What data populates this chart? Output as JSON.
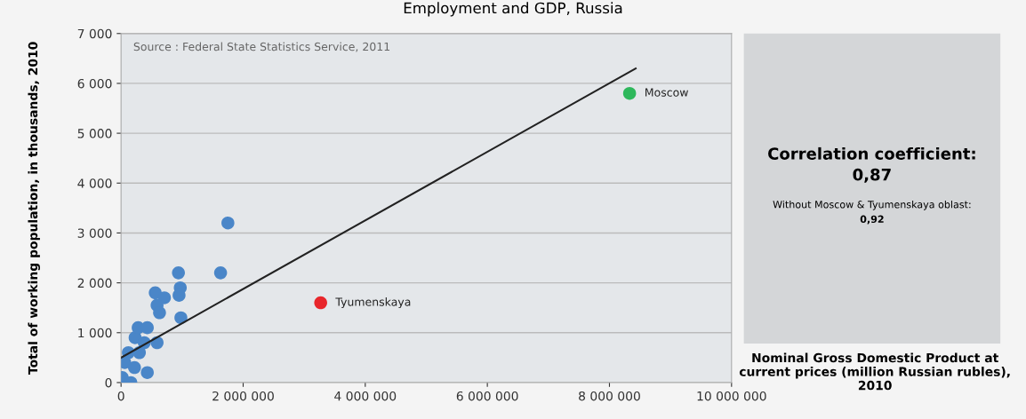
{
  "chart_data": {
    "type": "scatter",
    "title": "Employment and GDP, Russia",
    "xlabel": "Nominal Gross Domestic Product at current prices (million Russian rubles), 2010",
    "ylabel": "Total of working population, in thousands, 2010",
    "annotations": [
      "Source : Federal State Statistics Service, 2011",
      "Correlation coefficient:",
      "0,87",
      "Without Moscow & Tyumenskaya oblast:",
      "0,92"
    ],
    "xlim": [
      0,
      10000000
    ],
    "ylim": [
      0,
      7000
    ],
    "xticks": [
      {
        "value": 0,
        "label": "0"
      },
      {
        "value": 2000000,
        "label": "2 000 000"
      },
      {
        "value": 4000000,
        "label": "4 000 000"
      },
      {
        "value": 6000000,
        "label": "6 000 000"
      },
      {
        "value": 8000000,
        "label": "8 000 000"
      },
      {
        "value": 10000000,
        "label": "10 000 000"
      }
    ],
    "yticks": [
      0,
      {
        "value": 1000,
        "label": "1 000"
      },
      {
        "value": 2000,
        "label": "2 000"
      },
      {
        "value": 3000,
        "label": "3 000"
      },
      {
        "value": 4000,
        "label": "4 000"
      },
      {
        "value": 5000,
        "label": "5 000"
      },
      {
        "value": 6000,
        "label": "6 000"
      },
      {
        "value": 7000,
        "label": "7 000"
      }
    ],
    "grid": "y",
    "legend": false,
    "marker": "circle",
    "series": [
      {
        "color": "#4a86c8",
        "x": [
          1750000,
          1630000,
          940000,
          970000,
          950000,
          980000,
          560000,
          710000,
          590000,
          630000,
          590000,
          430000,
          20000,
          160000,
          60000,
          220000,
          120000,
          300000,
          230000,
          380000,
          280000,
          430000
        ],
        "values": [
          3200,
          2200,
          2200,
          1900,
          1750,
          1300,
          1800,
          1700,
          1550,
          1400,
          800,
          200,
          100,
          0,
          400,
          300,
          600,
          600,
          900,
          800,
          1100,
          1100
        ]
      },
      {
        "name": "Moscow",
        "color": "#2eb85c",
        "x": [
          8330000
        ],
        "values": [
          5800
        ]
      },
      {
        "name": "Tyumenskaya",
        "color": "#e8262b",
        "x": [
          3270000
        ],
        "values": [
          1600
        ]
      },
      {
        "type": "line",
        "color": "#222222",
        "marker": "none",
        "line_style": "solid",
        "x": [
          0,
          8430000
        ],
        "values": [
          500,
          6300
        ]
      }
    ]
  }
}
